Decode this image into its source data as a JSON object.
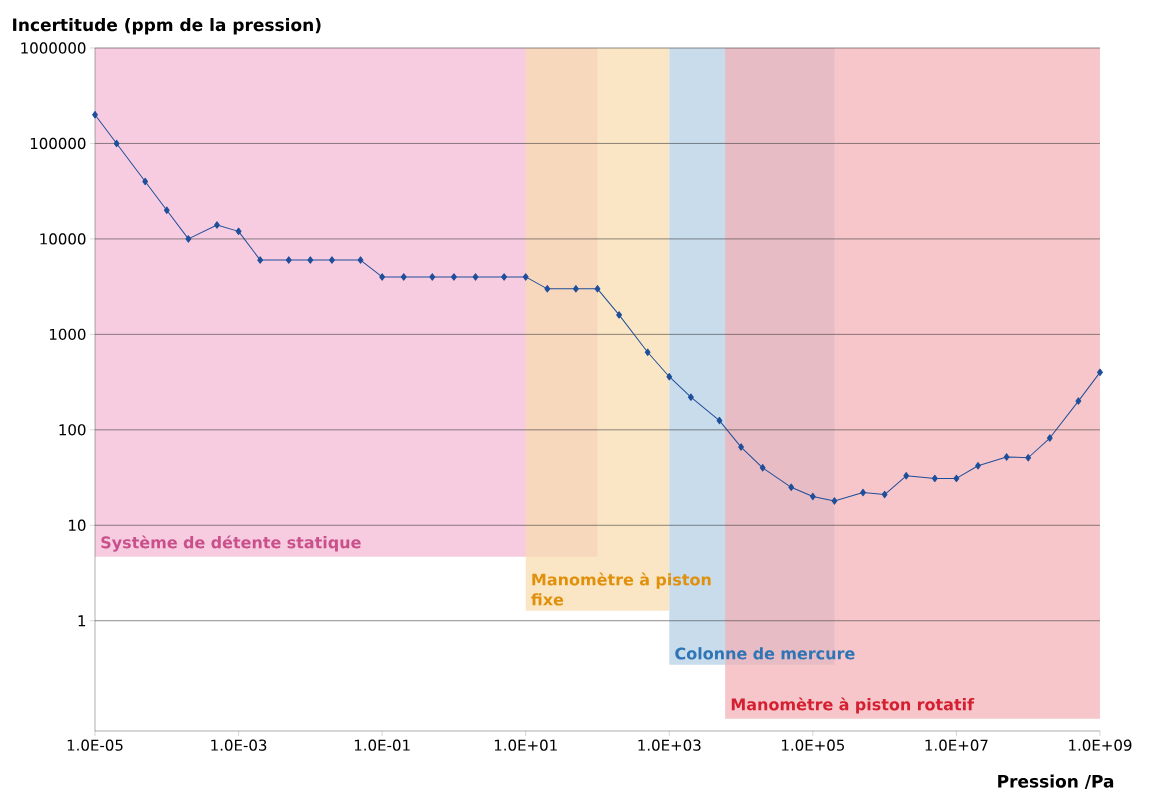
{
  "chart_data": {
    "type": "line",
    "xlabel": "Pression /Pa",
    "ylabel": "Incertitude (ppm de la pression)",
    "log": "xy",
    "grid": "y",
    "marker": "diamond",
    "line_style": "solid",
    "xlim": [
      1e-05,
      1000000000
    ],
    "ylim": [
      0.07,
      1000000
    ],
    "xticks": [
      {
        "value": 1e-05,
        "label": "1.0E-05"
      },
      {
        "value": 0.001,
        "label": "1.0E-03"
      },
      {
        "value": 0.1,
        "label": "1.0E-01"
      },
      {
        "value": 10,
        "label": "1.0E+01"
      },
      {
        "value": 1000,
        "label": "1.0E+03"
      },
      {
        "value": 100000,
        "label": "1.0E+05"
      },
      {
        "value": 10000000,
        "label": "1.0E+07"
      },
      {
        "value": 1000000000,
        "label": "1.0E+09"
      }
    ],
    "yticks": [
      1,
      10,
      100,
      1000,
      10000,
      100000,
      1000000
    ],
    "x": [
      1e-05,
      2e-05,
      5e-05,
      0.0001,
      0.0002,
      0.0005,
      0.001,
      0.002,
      0.005,
      0.01,
      0.02,
      0.05,
      0.1,
      0.2,
      0.5,
      1,
      2,
      5,
      10,
      20,
      50,
      100,
      200,
      500,
      1000,
      2000,
      5000,
      10000,
      20000,
      50000,
      100000,
      200000,
      500000,
      1000000,
      2000000,
      5000000,
      10000000,
      20000000,
      50000000,
      100000000,
      200000000,
      500000000,
      1000000000
    ],
    "series": [
      {
        "color": "#1f4e9a",
        "values": [
          200000,
          100000,
          40000,
          20000,
          10000,
          14000,
          12000,
          6000,
          6000,
          6000,
          6000,
          6000,
          4000,
          4000,
          4000,
          4000,
          4000,
          4000,
          4000,
          3000,
          3000,
          3000,
          1600,
          650,
          360,
          220,
          125,
          66,
          40,
          25,
          20,
          18,
          22,
          21,
          33,
          31,
          31,
          42,
          52,
          51,
          82,
          200,
          400
        ]
      }
    ],
    "bands": [
      {
        "axis": "x",
        "from": 1e-05,
        "to": 100,
        "label": "Système de détente statique",
        "color": "#f4b8d4"
      },
      {
        "axis": "x",
        "from": 10,
        "to": 1000,
        "label": "Manomètre à piston fixe",
        "color": "#f8dcae"
      },
      {
        "axis": "x",
        "from": 1000,
        "to": 200000,
        "label": "Colonne de mercure",
        "color": "#b3cfe4"
      },
      {
        "axis": "x",
        "from": 6000,
        "to": 1000000000,
        "label": "Manomètre à piston rotatif",
        "color": "#f3b0b5"
      }
    ]
  }
}
